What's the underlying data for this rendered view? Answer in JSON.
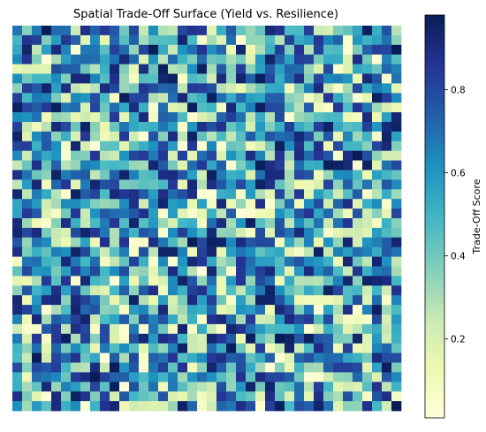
{
  "chart_data": {
    "type": "heatmap",
    "title": "Spatial Trade-Off Surface (Yield vs. Resilience)",
    "rows": 40,
    "cols": 40,
    "values": [],
    "zlim": [
      0.01,
      0.98
    ],
    "axes_visible": false,
    "grid": false,
    "colorbar": {
      "label": "Trade-Off Score",
      "ticks": [
        "0.2",
        "0.4",
        "0.6",
        "0.8"
      ],
      "tick_values": [
        0.2,
        0.4,
        0.6,
        0.8
      ],
      "position": "right"
    },
    "colormap": {
      "name": "YlGnBu",
      "stops": [
        "#ffffd9",
        "#edf8b1",
        "#c7e9b4",
        "#7fcdbb",
        "#41b6c4",
        "#1d91c0",
        "#225ea8",
        "#253494",
        "#081d58"
      ]
    }
  }
}
